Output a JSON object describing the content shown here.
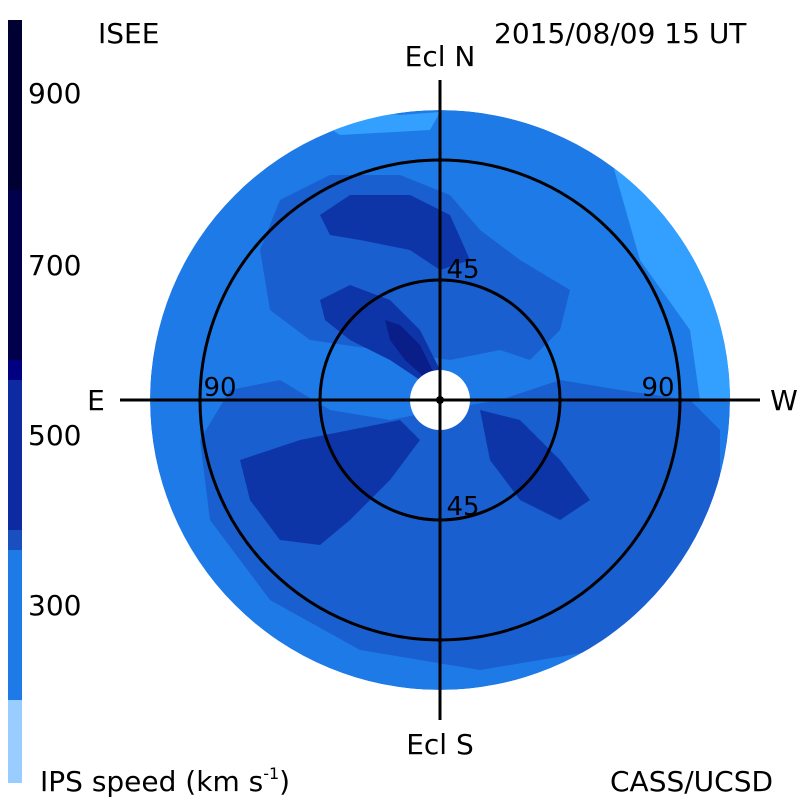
{
  "header": {
    "org": "ISEE",
    "datetime": "2015/08/09 15 UT",
    "credit": "CASS/UCSD"
  },
  "colorbar": {
    "label_main": "IPS speed (km s",
    "label_sup": "-1",
    "label_close": ")",
    "ticks": [
      {
        "label": "900"
      },
      {
        "label": "700"
      },
      {
        "label": "500"
      },
      {
        "label": "300"
      }
    ],
    "colors": [
      "#000033",
      "#00004d",
      "#000080",
      "#0d2aa0",
      "#1649b8",
      "#1a5fd0",
      "#1e7ae6",
      "#3399ff",
      "#99ccff"
    ]
  },
  "map": {
    "axis_top": "Ecl N",
    "axis_bottom": "Ecl S",
    "axis_left": "E",
    "axis_right": "W",
    "ring_labels": {
      "inner_top": "45",
      "inner_bottom": "45",
      "outer_left": "90",
      "outer_right": "90"
    },
    "colors": {
      "background": "#1e7ae6",
      "mid": "#1a5fd0",
      "dark": "#0d35a8",
      "darkest": "#0a1e8a",
      "light": "#33a0ff"
    }
  }
}
